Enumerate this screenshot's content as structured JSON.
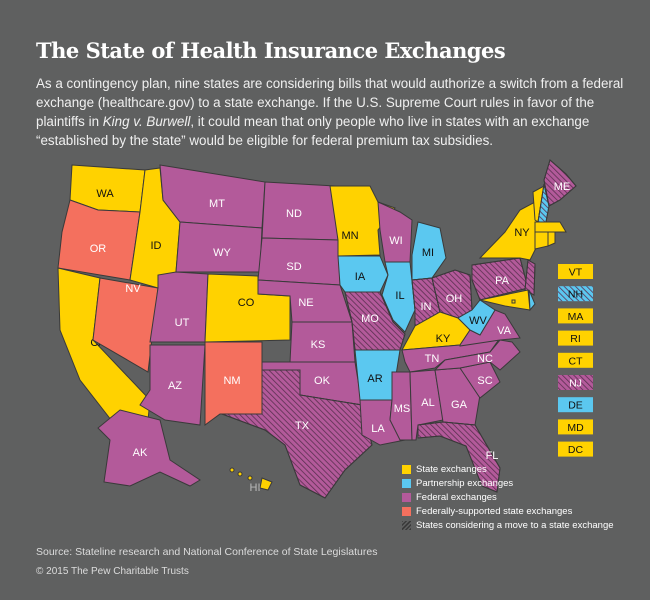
{
  "title": "The State of Health Insurance Exchanges",
  "description": {
    "part1": "As a contingency plan, nine states are considering bills that would authorize a switch from a federal exchange (healthcare.gov) to a state exchange. If the U.S. Supreme Court rules in favor of the plaintiffs in ",
    "case": "King v. Burwell",
    "part2": ", it could mean that only people who live in states with an exchange “established by the state” would be eligible for federal premium tax subsidies."
  },
  "colors": {
    "state": "#FFD200",
    "partnership": "#5BC8F0",
    "federal": "#B35A9A",
    "federally_supported": "#F4705E",
    "background": "#5f6060",
    "border": "#3a3a3a"
  },
  "legend": [
    {
      "key": "state",
      "label": "State exchanges"
    },
    {
      "key": "partnership",
      "label": "Partnership exchanges"
    },
    {
      "key": "federal",
      "label": "Federal exchanges"
    },
    {
      "key": "federally_supported",
      "label": "Federally-supported state exchanges"
    },
    {
      "key": "hatch",
      "label": "States considering a move to a state exchange"
    }
  ],
  "states": {
    "WA": {
      "type": "state"
    },
    "OR": {
      "type": "federally_supported"
    },
    "CA": {
      "type": "state"
    },
    "NV": {
      "type": "federally_supported"
    },
    "ID": {
      "type": "state"
    },
    "MT": {
      "type": "federal"
    },
    "WY": {
      "type": "federal"
    },
    "UT": {
      "type": "federal"
    },
    "AZ": {
      "type": "federal"
    },
    "CO": {
      "type": "state"
    },
    "NM": {
      "type": "federally_supported"
    },
    "ND": {
      "type": "federal"
    },
    "SD": {
      "type": "federal"
    },
    "NE": {
      "type": "federal"
    },
    "KS": {
      "type": "federal"
    },
    "OK": {
      "type": "federal"
    },
    "TX": {
      "type": "federal",
      "considering": true
    },
    "MN": {
      "type": "state"
    },
    "IA": {
      "type": "partnership"
    },
    "MO": {
      "type": "federal",
      "considering": true
    },
    "AR": {
      "type": "partnership"
    },
    "LA": {
      "type": "federal"
    },
    "WI": {
      "type": "federal"
    },
    "IL": {
      "type": "partnership"
    },
    "MI": {
      "type": "partnership"
    },
    "IN": {
      "type": "federal",
      "considering": true
    },
    "OH": {
      "type": "federal",
      "considering": true
    },
    "KY": {
      "type": "state"
    },
    "TN": {
      "type": "federal"
    },
    "MS": {
      "type": "federal"
    },
    "AL": {
      "type": "federal"
    },
    "GA": {
      "type": "federal"
    },
    "FL": {
      "type": "federal",
      "considering": true
    },
    "SC": {
      "type": "federal"
    },
    "NC": {
      "type": "federal"
    },
    "VA": {
      "type": "federal"
    },
    "WV": {
      "type": "partnership"
    },
    "PA": {
      "type": "federal",
      "considering": true
    },
    "NY": {
      "type": "state"
    },
    "NJ": {
      "type": "federal",
      "considering": true
    },
    "MD": {
      "type": "state"
    },
    "DE": {
      "type": "partnership"
    },
    "DC": {
      "type": "state"
    },
    "VT": {
      "type": "state"
    },
    "NH": {
      "type": "partnership",
      "considering": true
    },
    "MA": {
      "type": "state"
    },
    "RI": {
      "type": "state"
    },
    "CT": {
      "type": "state"
    },
    "ME": {
      "type": "federal",
      "considering": true
    },
    "AK": {
      "type": "federal"
    },
    "HI": {
      "type": "state"
    }
  },
  "small_states": [
    "VT",
    "NH",
    "MA",
    "RI",
    "CT",
    "NJ",
    "DE",
    "MD",
    "DC"
  ],
  "source": "Source: Stateline research and National Conference of State Legislatures",
  "copyright": "© 2015 The Pew Charitable Trusts"
}
